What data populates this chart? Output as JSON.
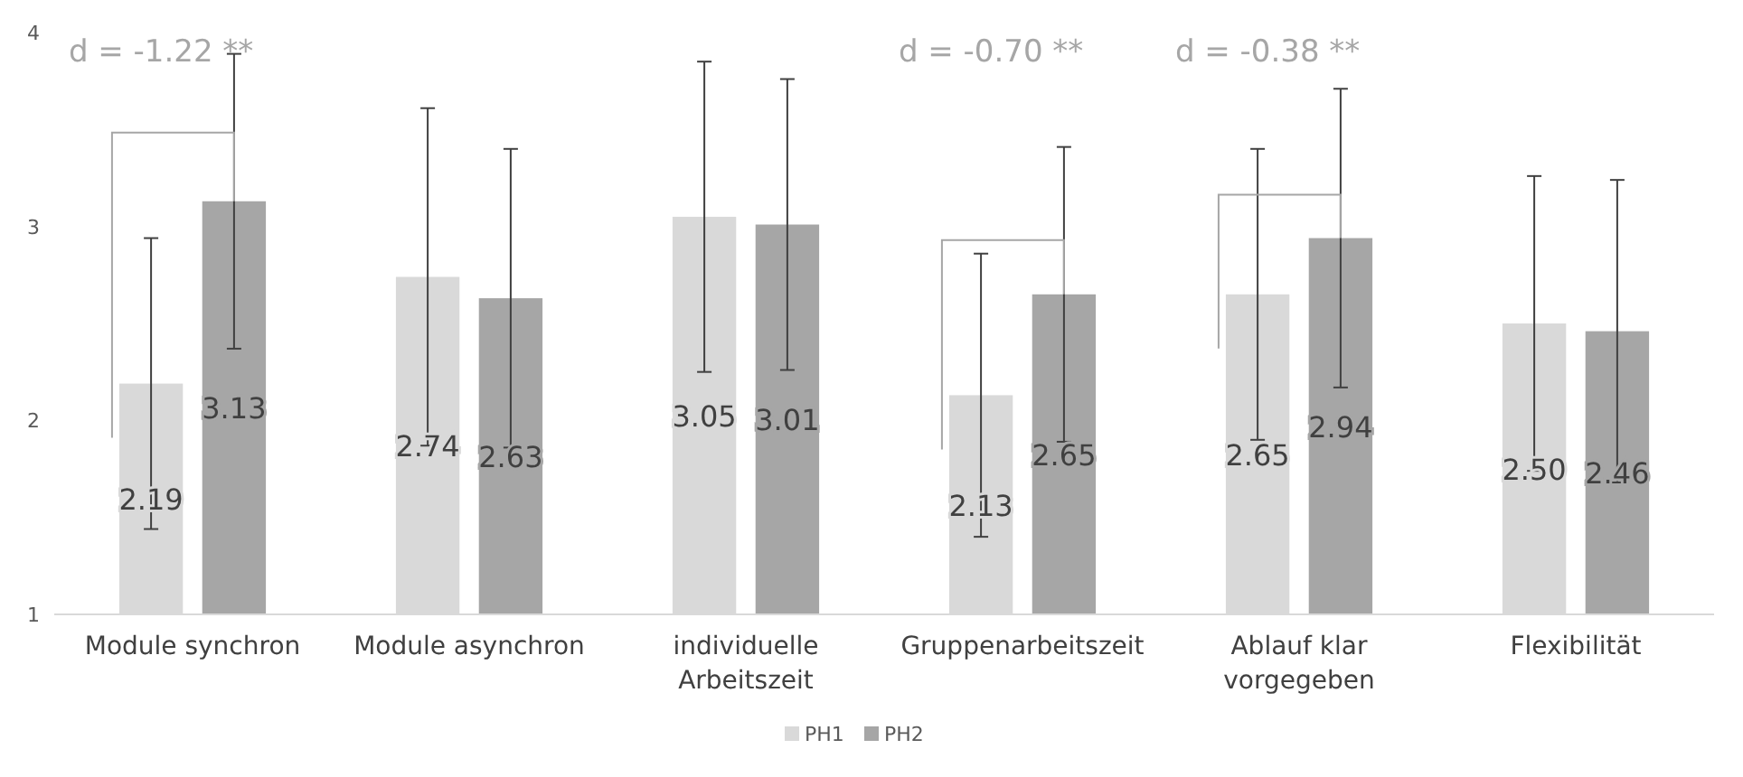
{
  "chart_data": {
    "type": "bar",
    "categories": [
      "Module synchron",
      "Module asynchron",
      "individuelle Arbeitszeit",
      "Gruppenarbeitszeit",
      "Ablauf klar vorgegeben",
      "Flexibilität"
    ],
    "series": [
      {
        "name": "PH1",
        "color": "#d9d9d9",
        "values": [
          2.19,
          2.74,
          3.05,
          2.13,
          2.65,
          2.5
        ],
        "value_labels": [
          "2.19",
          "2.74",
          "3.05",
          "2.13",
          "2.65",
          "2.50"
        ],
        "errors": [
          0.75,
          0.87,
          0.8,
          0.73,
          0.75,
          0.76
        ]
      },
      {
        "name": "PH2",
        "color": "#a6a6a6",
        "values": [
          3.13,
          2.63,
          3.01,
          2.65,
          2.94,
          2.46
        ],
        "value_labels": [
          "3.13",
          "2.63",
          "3.01",
          "2.65",
          "2.94",
          "2.46"
        ],
        "errors": [
          0.76,
          0.77,
          0.75,
          0.76,
          0.77,
          0.78
        ]
      }
    ],
    "ylim": [
      1,
      4
    ],
    "yticks": [
      1,
      2,
      3,
      4
    ],
    "grid": false,
    "legend": "bottom",
    "annotations": [
      "d = -1.22 **",
      "d = -0.70 **",
      "d = -0.38 **"
    ]
  }
}
